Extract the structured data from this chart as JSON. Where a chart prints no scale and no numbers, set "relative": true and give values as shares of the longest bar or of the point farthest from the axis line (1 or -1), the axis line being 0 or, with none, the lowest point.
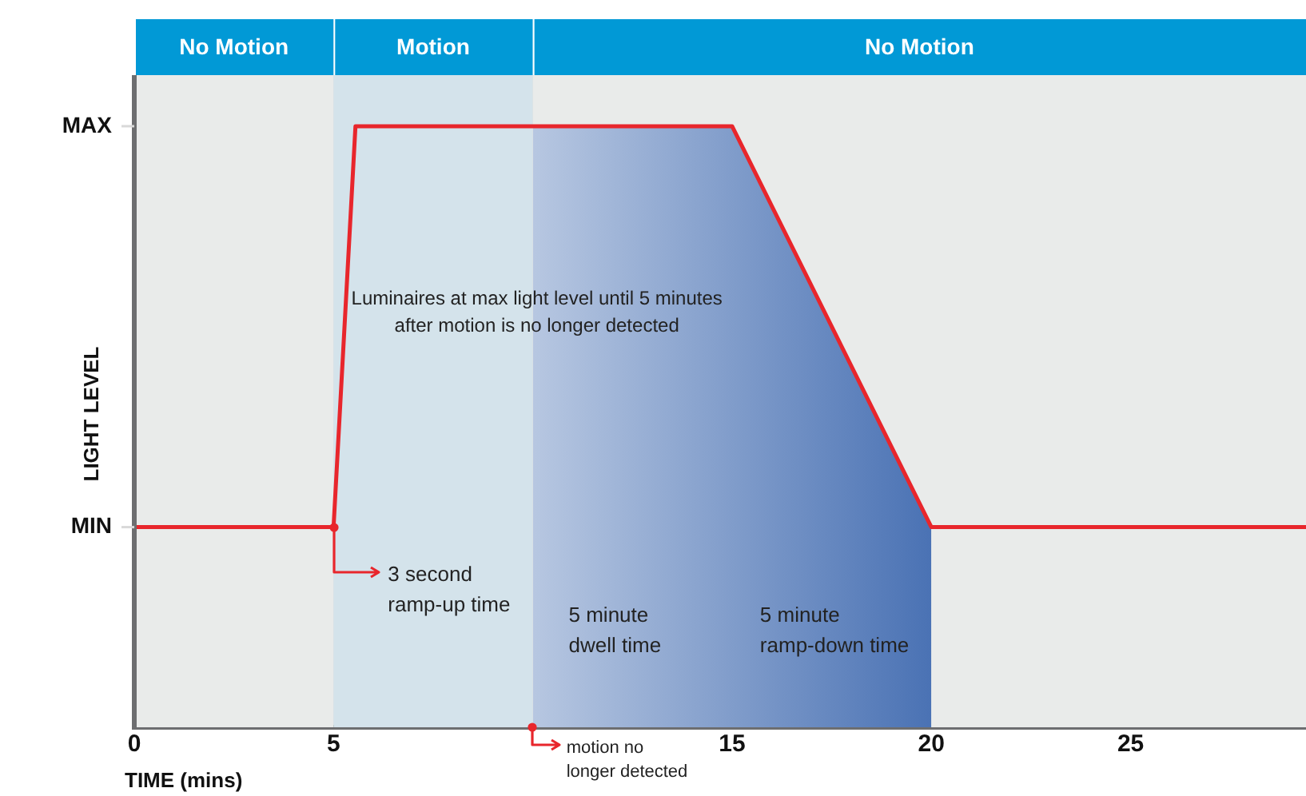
{
  "chart_data": {
    "type": "line",
    "xlabel": "TIME (mins)",
    "ylabel": "LIGHT LEVEL",
    "relative": true,
    "xlim": [
      0,
      29.4
    ],
    "xticks": [
      0,
      5,
      {
        "value": 10,
        "label": null
      },
      15,
      20,
      25
    ],
    "grid": "x",
    "legend": false,
    "marker": "none",
    "line_style": "solid",
    "series": [
      {
        "type": "area",
        "color": "#4a72b4",
        "x": [
          10,
          15,
          20
        ],
        "values": [
          1,
          1,
          0.333
        ]
      },
      {
        "color": "#e8262c",
        "x": [
          0,
          5,
          5.55,
          15,
          20,
          29.4
        ],
        "values": [
          0.333,
          0.333,
          1,
          1,
          0.333,
          0.333
        ]
      }
    ],
    "bands": [
      {
        "axis": "x",
        "from": 0,
        "to": 5,
        "label": "No Motion",
        "color": "#e9ebea"
      },
      {
        "axis": "x",
        "from": 5,
        "to": 10,
        "label": "Motion",
        "color": "#d4e3eb"
      },
      {
        "axis": "x",
        "from": 10,
        "to": 29.4,
        "label": "No Motion",
        "color": "#e9ebea"
      }
    ],
    "annotations": [
      {
        "text": "Luminaires at max light level until 5 minutes after motion is no longer detected",
        "x": 10.1,
        "y": 0.69
      },
      {
        "text": "3 second ramp-up time",
        "x": 5,
        "y": 0.333
      },
      "5 minute dwell time",
      "5 minute ramp-down time",
      {
        "text": "motion no longer detected",
        "x": 10,
        "y": 0
      },
      "MAX",
      "MIN"
    ]
  }
}
